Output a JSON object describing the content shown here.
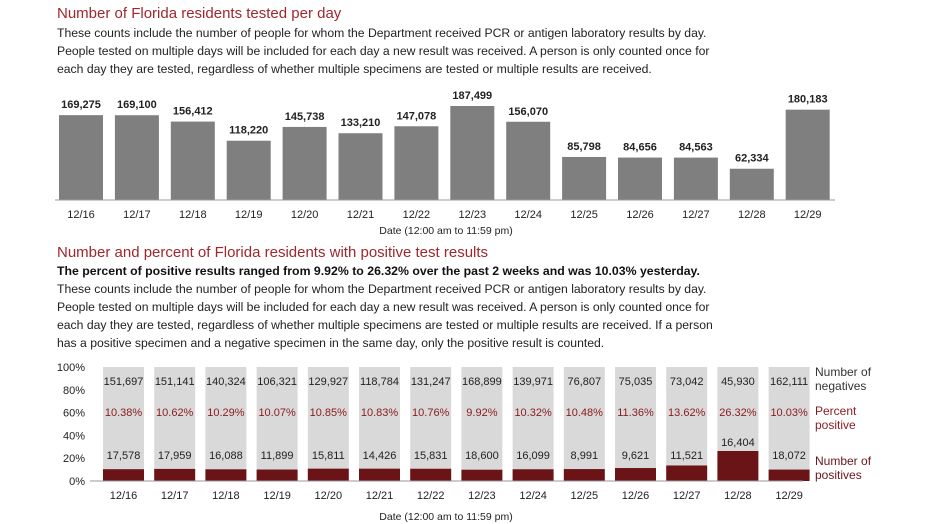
{
  "section1": {
    "title": "Number of Florida residents tested per day",
    "paragraph_lines": [
      "These counts include the number of people for whom the Department received PCR or antigen laboratory results by day.",
      "People tested on multiple days will be included for each day a new result was received. A person is only counted once for",
      "each day they are tested, regardless of whether multiple specimens are tested or multiple results are received."
    ]
  },
  "section2": {
    "title": "Number and percent of Florida residents with positive test results",
    "bold_line": "The percent of positive results ranged from 9.92% to 26.32% over the past 2 weeks and was 10.03% yesterday.",
    "paragraph_lines": [
      "These counts include the number of people for whom the Department received PCR or antigen laboratory results by day.",
      "People tested on multiple days will be included for each day a new result was received. A person is only counted once for",
      "each day they are tested, regardless of whether multiple specimens are tested or multiple results are received. If a person",
      "has a positive specimen and a negative specimen in the same day, only the positive result is counted."
    ]
  },
  "colors": {
    "title": "#a0272d",
    "bar_gray": "#7f7f7f",
    "negatives": "#d9d9d9",
    "positives": "#6b1418",
    "percent_text": "#8b1a1f"
  },
  "chart_data": [
    {
      "type": "bar",
      "categories": [
        "12/16",
        "12/17",
        "12/18",
        "12/19",
        "12/20",
        "12/21",
        "12/22",
        "12/23",
        "12/24",
        "12/25",
        "12/26",
        "12/27",
        "12/28",
        "12/29"
      ],
      "values": [
        169275,
        169100,
        156412,
        118220,
        145738,
        133210,
        147078,
        187499,
        156070,
        85798,
        84656,
        84563,
        62334,
        180183
      ],
      "value_labels": [
        "169,275",
        "169,100",
        "156,412",
        "118,220",
        "145,738",
        "133,210",
        "147,078",
        "187,499",
        "156,070",
        "85,798",
        "84,656",
        "84,563",
        "62,334",
        "180,183"
      ],
      "xlabel": "Date (12:00 am to 11:59 pm)",
      "ylabel": "",
      "grid": false
    },
    {
      "type": "bar",
      "stacked": "percent",
      "categories": [
        "12/16",
        "12/17",
        "12/18",
        "12/19",
        "12/20",
        "12/21",
        "12/22",
        "12/23",
        "12/24",
        "12/25",
        "12/26",
        "12/27",
        "12/28",
        "12/29"
      ],
      "series": [
        {
          "name": "Number of positives",
          "values": [
            17578,
            17959,
            16088,
            11899,
            15811,
            14426,
            15831,
            18600,
            16099,
            8991,
            9621,
            11521,
            16404,
            18072
          ],
          "value_labels": [
            "17,578",
            "17,959",
            "16,088",
            "11,899",
            "15,811",
            "14,426",
            "15,831",
            "18,600",
            "16,099",
            "8,991",
            "9,621",
            "11,521",
            "16,404",
            "18,072"
          ]
        },
        {
          "name": "Number of negatives",
          "values": [
            151697,
            151141,
            140324,
            106321,
            129927,
            118784,
            131247,
            168899,
            139971,
            76807,
            75035,
            73042,
            45930,
            162111
          ],
          "value_labels": [
            "151,697",
            "151,141",
            "140,324",
            "106,321",
            "129,927",
            "118,784",
            "131,247",
            "168,899",
            "139,971",
            "76,807",
            "75,035",
            "73,042",
            "45,930",
            "162,111"
          ]
        }
      ],
      "percent_positive": [
        "10.38%",
        "10.62%",
        "10.29%",
        "10.07%",
        "10.85%",
        "10.83%",
        "10.76%",
        "9.92%",
        "10.32%",
        "10.48%",
        "11.36%",
        "13.62%",
        "26.32%",
        "10.03%"
      ],
      "legend_labels": [
        [
          "Number of",
          "negatives"
        ],
        [
          "Percent",
          "positive"
        ],
        [
          "Number of",
          "positives"
        ]
      ],
      "y_ticks": [
        "0%",
        "20%",
        "40%",
        "60%",
        "80%",
        "100%"
      ],
      "ylim": [
        0,
        100
      ],
      "xlabel": "Date (12:00 am to 11:59 pm)",
      "legend_position": "right"
    }
  ]
}
